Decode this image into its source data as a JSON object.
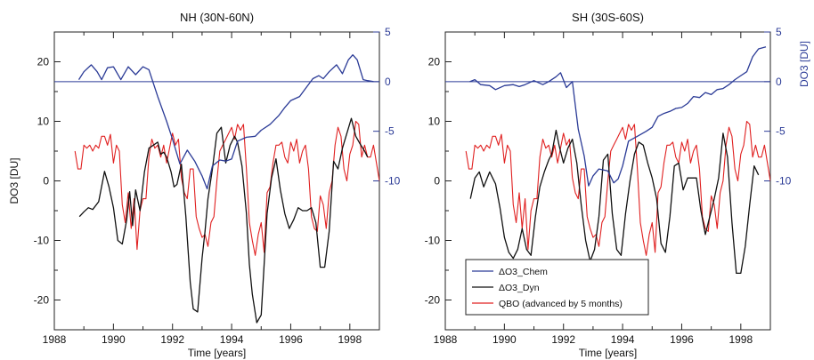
{
  "chart_data": [
    {
      "type": "line",
      "title": "NH (30N-60N)",
      "xlabel": "Time [years]",
      "ylabel": "DO3 [DU]",
      "xlim": [
        1988,
        1999
      ],
      "ylim": [
        -25,
        25
      ],
      "y2lim": [
        -25,
        5
      ],
      "x_ticks": [
        1988,
        1990,
        1992,
        1994,
        1996,
        1998
      ],
      "y_ticks": [
        -20,
        -10,
        0,
        10,
        20
      ],
      "y2_ticks": [
        -10,
        -5,
        0,
        5
      ],
      "colors": {
        "chem": "#2a3a96",
        "dyn": "#111111",
        "qbo": "#e02020"
      },
      "series": [
        {
          "name": "ΔO3_Chem",
          "axis": "right",
          "color": "#2a3a96",
          "x": [
            1988.83,
            1989.0,
            1989.25,
            1989.45,
            1989.6,
            1989.8,
            1990.0,
            1990.25,
            1990.5,
            1990.75,
            1991.0,
            1991.2,
            1991.5,
            1991.8,
            1992.0,
            1992.25,
            1992.5,
            1992.75,
            1993.0,
            1993.17,
            1993.35,
            1993.6,
            1993.8,
            1994.0,
            1994.2,
            1994.5,
            1994.8,
            1995.0,
            1995.3,
            1995.6,
            1995.8,
            1996.0,
            1996.3,
            1996.5,
            1996.75,
            1996.95,
            1997.1,
            1997.3,
            1997.55,
            1997.75,
            1997.95,
            1998.1,
            1998.25,
            1998.45,
            1998.6,
            1998.8
          ],
          "y": [
            0.2,
            1.0,
            1.7,
            1.0,
            0.2,
            1.4,
            1.5,
            0.2,
            1.5,
            0.7,
            1.5,
            1.2,
            -1.5,
            -4.0,
            -5.8,
            -8.3,
            -6.9,
            -8.0,
            -9.5,
            -10.8,
            -8.5,
            -7.9,
            -8.0,
            -7.8,
            -6.0,
            -5.6,
            -5.5,
            -4.9,
            -4.3,
            -3.4,
            -2.6,
            -1.9,
            -1.5,
            -0.7,
            0.3,
            0.6,
            0.3,
            1.0,
            1.7,
            0.8,
            2.2,
            2.7,
            2.2,
            0.2,
            0.1,
            0.0
          ]
        },
        {
          "name": "ΔO3_Dyn",
          "axis": "left",
          "color": "#111111",
          "x": [
            1988.85,
            1989.0,
            1989.15,
            1989.3,
            1989.5,
            1989.7,
            1989.85,
            1990.0,
            1990.15,
            1990.3,
            1990.45,
            1990.55,
            1990.65,
            1990.75,
            1990.9,
            1991.05,
            1991.2,
            1991.35,
            1991.5,
            1991.6,
            1991.7,
            1991.8,
            1991.95,
            1992.05,
            1992.15,
            1992.3,
            1992.45,
            1992.6,
            1992.7,
            1992.85,
            1993.0,
            1993.1,
            1993.2,
            1993.35,
            1993.5,
            1993.65,
            1993.8,
            1993.95,
            1994.1,
            1994.2,
            1994.35,
            1994.5,
            1994.6,
            1994.7,
            1994.85,
            1995.0,
            1995.1,
            1995.2,
            1995.35,
            1995.5,
            1995.65,
            1995.8,
            1995.95,
            1996.1,
            1996.25,
            1996.4,
            1996.55,
            1996.7,
            1996.85,
            1997.0,
            1997.15,
            1997.3,
            1997.45,
            1997.6,
            1997.75,
            1997.9,
            1998.05,
            1998.2,
            1998.35,
            1998.5,
            1998.6
          ],
          "y": [
            -6,
            -5.2,
            -4.5,
            -4.8,
            -3.5,
            1.6,
            -1.0,
            -4.5,
            -10.0,
            -10.6,
            -6.5,
            -1.8,
            -7.5,
            -1.5,
            -5.0,
            1.5,
            5.5,
            6.0,
            6.5,
            4.5,
            4.8,
            4.0,
            1.5,
            -1.0,
            -0.6,
            2.8,
            -6.0,
            -17.0,
            -21.5,
            -22.0,
            -13.0,
            -8.5,
            -3.0,
            2.0,
            8.0,
            9.0,
            3.0,
            6.0,
            7.5,
            6.5,
            2.5,
            -5.5,
            -14.0,
            -19.0,
            -23.8,
            -22.5,
            -14.0,
            -5.5,
            0.5,
            3.7,
            -1.5,
            -5.5,
            -8.0,
            -6.5,
            -4.5,
            -5.0,
            -5.0,
            -4.5,
            -7.0,
            -14.5,
            -14.5,
            -8.5,
            3.3,
            2.0,
            5.5,
            8.0,
            10.5,
            7.5,
            6.2,
            5.0,
            4.0
          ]
        },
        {
          "name": "QBO (advanced by 5 months)",
          "axis": "left",
          "color": "#e02020",
          "x": [
            1988.7,
            1988.8,
            1988.9,
            1989.0,
            1989.1,
            1989.2,
            1989.3,
            1989.4,
            1989.5,
            1989.6,
            1989.7,
            1989.8,
            1989.9,
            1990.0,
            1990.1,
            1990.2,
            1990.3,
            1990.4,
            1990.5,
            1990.6,
            1990.7,
            1990.8,
            1990.9,
            1991.0,
            1991.1,
            1991.2,
            1991.3,
            1991.4,
            1991.5,
            1991.6,
            1991.7,
            1991.8,
            1991.9,
            1992.0,
            1992.1,
            1992.2,
            1992.3,
            1992.4,
            1992.5,
            1992.6,
            1992.7,
            1992.8,
            1992.9,
            1993.0,
            1993.1,
            1993.2,
            1993.3,
            1993.4,
            1993.5,
            1993.6,
            1993.7,
            1993.8,
            1993.9,
            1994.0,
            1994.1,
            1994.2,
            1994.3,
            1994.4,
            1994.5,
            1994.6,
            1994.7,
            1994.8,
            1994.9,
            1995.0,
            1995.1,
            1995.2,
            1995.3,
            1995.4,
            1995.5,
            1995.6,
            1995.7,
            1995.8,
            1995.9,
            1996.0,
            1996.1,
            1996.2,
            1996.3,
            1996.4,
            1996.5,
            1996.6,
            1996.7,
            1996.8,
            1996.9,
            1997.0,
            1997.1,
            1997.2,
            1997.3,
            1997.4,
            1997.5,
            1997.6,
            1997.7,
            1997.8,
            1997.9,
            1998.0,
            1998.1,
            1998.2,
            1998.3,
            1998.4,
            1998.5,
            1998.6,
            1998.7,
            1998.8,
            1998.9,
            1999.0
          ],
          "y": [
            5,
            2,
            2,
            6,
            5.5,
            6,
            5,
            6,
            5.5,
            7.5,
            7.5,
            6,
            7.8,
            3,
            6,
            5,
            -4,
            -7,
            -2,
            -8,
            -3,
            -11.5,
            -5,
            -3,
            -3,
            4,
            7,
            5.5,
            6,
            4,
            6,
            3,
            5.5,
            8,
            6,
            7,
            0.5,
            -2,
            -3,
            2,
            2,
            -6,
            -8,
            -9.5,
            -9,
            -11,
            -7,
            -6,
            0,
            5,
            6,
            7,
            8,
            9,
            7,
            9.5,
            8.5,
            9.5,
            2,
            -7,
            -10,
            -12.5,
            -9,
            -7,
            -12,
            -2,
            -1,
            3,
            6,
            6,
            6.5,
            4,
            3,
            6.5,
            5,
            7,
            3,
            5,
            6,
            2,
            -6,
            -8,
            -8.5,
            -2.5,
            -4,
            -8,
            -2,
            0,
            6,
            9,
            7.5,
            2,
            0,
            4.5,
            6,
            10,
            9.5,
            4,
            6,
            4,
            4,
            6,
            3,
            0
          ]
        }
      ]
    },
    {
      "type": "line",
      "title": "SH (30S-60S)",
      "xlabel": "Time [years]",
      "ylabel": "DO3 [DU]",
      "xlim": [
        1988,
        1999
      ],
      "ylim": [
        -25,
        25
      ],
      "y2lim": [
        -25,
        5
      ],
      "x_ticks": [
        1988,
        1990,
        1992,
        1994,
        1996,
        1998
      ],
      "y_ticks": [
        -20,
        -10,
        0,
        10,
        20
      ],
      "y2_ticks": [
        -10,
        -5,
        0,
        5
      ],
      "colors": {
        "chem": "#2a3a96",
        "dyn": "#111111",
        "qbo": "#e02020"
      },
      "legend": {
        "position": "lower-left",
        "entries": [
          "ΔO3_Chem",
          "ΔO3_Dyn",
          "QBO (advanced by 5 months)"
        ]
      },
      "series": [
        {
          "name": "ΔO3_Chem",
          "axis": "right",
          "color": "#2a3a96",
          "x": [
            1988.83,
            1989.0,
            1989.2,
            1989.5,
            1989.7,
            1990.0,
            1990.3,
            1990.5,
            1990.7,
            1991.0,
            1991.3,
            1991.5,
            1991.75,
            1991.9,
            1992.1,
            1992.3,
            1992.5,
            1992.7,
            1992.85,
            1993.0,
            1993.2,
            1993.5,
            1993.7,
            1993.85,
            1994.0,
            1994.2,
            1994.5,
            1994.8,
            1995.0,
            1995.2,
            1995.4,
            1995.6,
            1995.8,
            1996.0,
            1996.2,
            1996.4,
            1996.6,
            1996.8,
            1997.0,
            1997.2,
            1997.4,
            1997.6,
            1997.8,
            1998.0,
            1998.2,
            1998.4,
            1998.6,
            1998.85
          ],
          "y": [
            0.0,
            0.2,
            -0.3,
            -0.4,
            -0.8,
            -0.4,
            -0.3,
            -0.5,
            -0.3,
            0.1,
            -0.3,
            0.0,
            0.5,
            0.9,
            -0.6,
            0.0,
            -4.8,
            -7.5,
            -10.5,
            -9.5,
            -8.8,
            -9.0,
            -10.2,
            -9.8,
            -8.5,
            -6.0,
            -5.5,
            -5.0,
            -4.6,
            -3.5,
            -3.2,
            -3.0,
            -2.7,
            -2.6,
            -2.2,
            -1.5,
            -1.6,
            -1.1,
            -1.3,
            -0.8,
            -0.7,
            -0.3,
            0.2,
            0.6,
            1.0,
            2.5,
            3.3,
            3.5
          ]
        },
        {
          "name": "ΔO3_Dyn",
          "axis": "left",
          "color": "#111111",
          "x": [
            1988.85,
            1989.0,
            1989.15,
            1989.3,
            1989.5,
            1989.7,
            1989.85,
            1990.0,
            1990.15,
            1990.3,
            1990.45,
            1990.6,
            1990.75,
            1990.9,
            1991.05,
            1991.2,
            1991.35,
            1991.5,
            1991.6,
            1991.75,
            1991.85,
            1992.0,
            1992.15,
            1992.3,
            1992.45,
            1992.6,
            1992.75,
            1992.9,
            1993.05,
            1993.2,
            1993.35,
            1993.5,
            1993.65,
            1993.8,
            1993.95,
            1994.1,
            1994.25,
            1994.4,
            1994.55,
            1994.7,
            1994.85,
            1995.0,
            1995.15,
            1995.3,
            1995.45,
            1995.6,
            1995.75,
            1995.9,
            1996.05,
            1996.2,
            1996.35,
            1996.5,
            1996.65,
            1996.8,
            1996.95,
            1997.1,
            1997.25,
            1997.4,
            1997.55,
            1997.7,
            1997.85,
            1998.0,
            1998.15,
            1998.3,
            1998.45,
            1998.6
          ],
          "y": [
            -3,
            0.5,
            1.5,
            -1,
            1.5,
            -0.5,
            -4.5,
            -9.5,
            -12,
            -13,
            -11.5,
            -8,
            -11.5,
            -12.5,
            -6,
            -1,
            1.5,
            3.5,
            4.5,
            8.5,
            6,
            3,
            5.5,
            7,
            3,
            -4,
            -10,
            -13.5,
            -11.5,
            -6,
            3.5,
            4.5,
            -5.5,
            -11.5,
            -12.5,
            -5.5,
            0,
            4.5,
            6.5,
            6,
            3,
            0.5,
            -3,
            -10.5,
            -12,
            -6,
            2.5,
            3,
            -1.5,
            0.5,
            0.5,
            0.5,
            -5,
            -9,
            -6,
            -3,
            0.5,
            8,
            4,
            -7,
            -15.5,
            -15.5,
            -11,
            -4,
            2.5,
            1
          ]
        },
        {
          "name": "QBO (advanced by 5 months)",
          "axis": "left",
          "color": "#e02020",
          "x": [
            1988.7,
            1988.8,
            1988.9,
            1989.0,
            1989.1,
            1989.2,
            1989.3,
            1989.4,
            1989.5,
            1989.6,
            1989.7,
            1989.8,
            1989.9,
            1990.0,
            1990.1,
            1990.2,
            1990.3,
            1990.4,
            1990.5,
            1990.6,
            1990.7,
            1990.8,
            1990.9,
            1991.0,
            1991.1,
            1991.2,
            1991.3,
            1991.4,
            1991.5,
            1991.6,
            1991.7,
            1991.8,
            1991.9,
            1992.0,
            1992.1,
            1992.2,
            1992.3,
            1992.4,
            1992.5,
            1992.6,
            1992.7,
            1992.8,
            1992.9,
            1993.0,
            1993.1,
            1993.2,
            1993.3,
            1993.4,
            1993.5,
            1993.6,
            1993.7,
            1993.8,
            1993.9,
            1994.0,
            1994.1,
            1994.2,
            1994.3,
            1994.4,
            1994.5,
            1994.6,
            1994.7,
            1994.8,
            1994.9,
            1995.0,
            1995.1,
            1995.2,
            1995.3,
            1995.4,
            1995.5,
            1995.6,
            1995.7,
            1995.8,
            1995.9,
            1996.0,
            1996.1,
            1996.2,
            1996.3,
            1996.4,
            1996.5,
            1996.6,
            1996.7,
            1996.8,
            1996.9,
            1997.0,
            1997.1,
            1997.2,
            1997.3,
            1997.4,
            1997.5,
            1997.6,
            1997.7,
            1997.8,
            1997.9,
            1998.0,
            1998.1,
            1998.2,
            1998.3,
            1998.4,
            1998.5,
            1998.6,
            1998.7,
            1998.8,
            1998.9,
            1999.0
          ],
          "y": [
            5,
            2,
            2,
            6,
            5.5,
            6,
            5,
            6,
            5.5,
            7.5,
            7.5,
            6,
            7.8,
            3,
            6,
            5,
            -4,
            -7,
            -2,
            -8,
            -3,
            -11.5,
            -5,
            -3,
            -3,
            4,
            7,
            5.5,
            6,
            4,
            6,
            3,
            5.5,
            8,
            6,
            7,
            0.5,
            -2,
            -3,
            2,
            2,
            -6,
            -8,
            -9.5,
            -9,
            -11,
            -7,
            -6,
            0,
            5,
            6,
            7,
            8,
            9,
            7,
            9.5,
            8.5,
            9.5,
            2,
            -7,
            -10,
            -12.5,
            -9,
            -7,
            -12,
            -2,
            -1,
            3,
            6,
            6,
            6.5,
            4,
            3,
            6.5,
            5,
            7,
            3,
            5,
            6,
            2,
            -6,
            -8,
            -8.5,
            -2.5,
            -4,
            -8,
            -2,
            0,
            6,
            9,
            7.5,
            2,
            0,
            4.5,
            6,
            10,
            9.5,
            4,
            6,
            4,
            4,
            6,
            3,
            0
          ]
        }
      ]
    }
  ]
}
